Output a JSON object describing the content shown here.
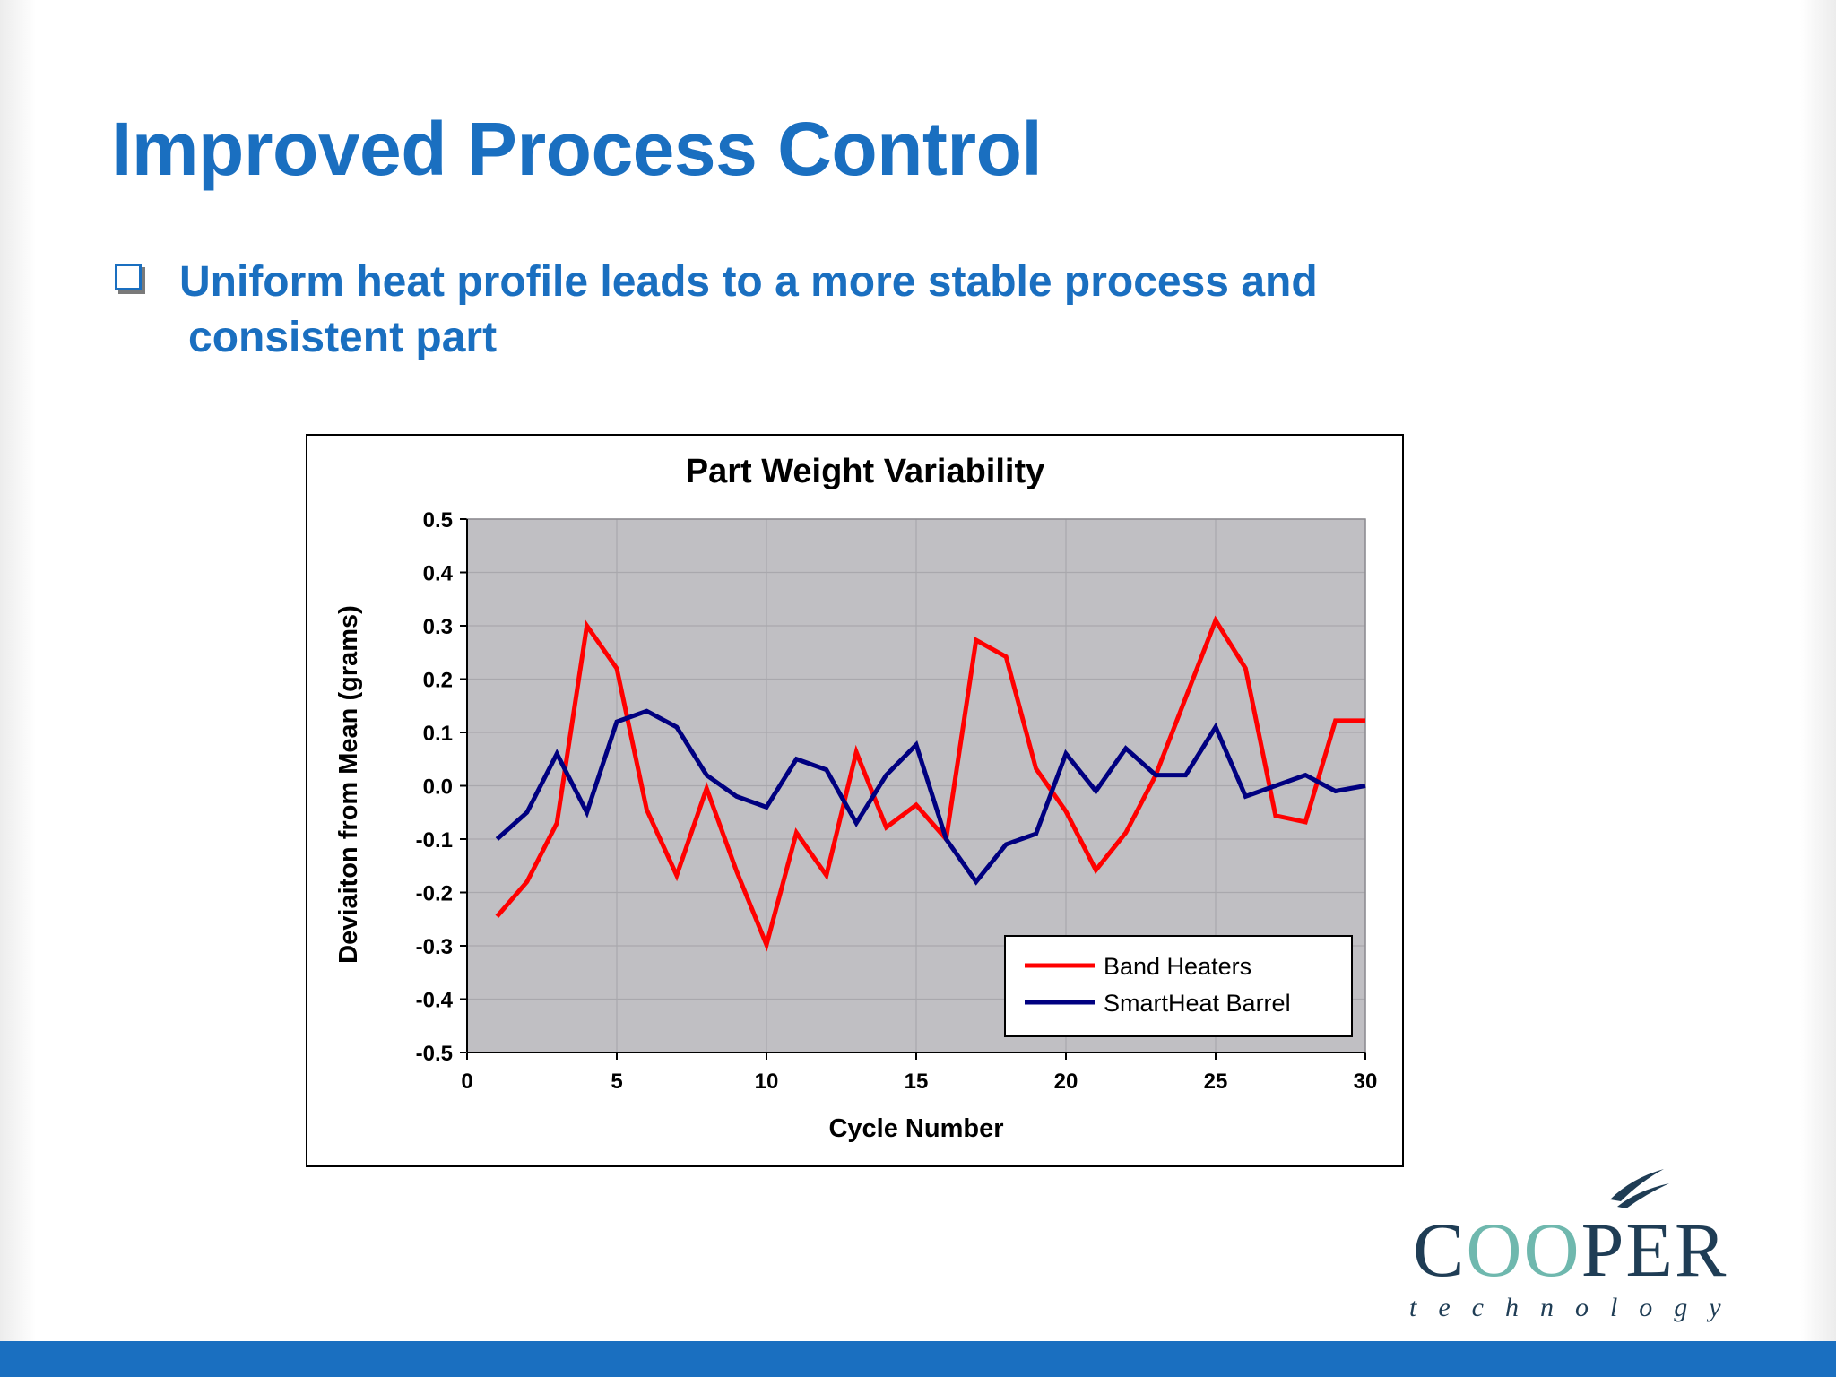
{
  "slide": {
    "title": "Improved Process Control",
    "bullet_line1": "Uniform heat profile leads to a more stable process and",
    "bullet_line2": "consistent part",
    "colors": {
      "title": "#1a6fc0",
      "footer_bar": "#1a6fc0"
    }
  },
  "logo": {
    "word_start": "C",
    "word_oo": "OO",
    "word_end": "PER",
    "subtitle": "technology",
    "colors": {
      "text": "#1f3d55",
      "accent": "#6fb8ae"
    }
  },
  "chart_data": {
    "type": "line",
    "title": "Part Weight Variability",
    "xlabel": "Cycle Number",
    "ylabel": "Deviaiton from Mean (grams)",
    "xlim": [
      0,
      30
    ],
    "ylim": [
      -0.5,
      0.5
    ],
    "x_ticks": [
      "0",
      "5",
      "10",
      "15",
      "20",
      "25",
      "30"
    ],
    "y_ticks": [
      "0.5",
      "0.4",
      "0.3",
      "0.2",
      "0.1",
      "0.0",
      "-0.1",
      "-0.2",
      "-0.3",
      "-0.4",
      "-0.5"
    ],
    "grid": true,
    "plot_background": "#c0bfc3",
    "legend_position": "bottom-right",
    "x": [
      1,
      2,
      3,
      4,
      5,
      6,
      7,
      8,
      9,
      10,
      11,
      12,
      13,
      14,
      15,
      16,
      17,
      18,
      19,
      20,
      21,
      22,
      23,
      24,
      25,
      26,
      27,
      28,
      29,
      30
    ],
    "series": [
      {
        "name": "Band Heaters",
        "color": "#ff0000",
        "values": [
          -0.245,
          -0.18,
          -0.07,
          0.3,
          0.22,
          -0.045,
          -0.168,
          -0.005,
          -0.16,
          -0.298,
          -0.088,
          -0.168,
          0.063,
          -0.078,
          -0.036,
          -0.1,
          0.273,
          0.242,
          0.032,
          -0.048,
          -0.158,
          -0.088,
          0.02,
          0.165,
          0.31,
          0.22,
          -0.056,
          -0.068,
          0.122,
          0.122
        ]
      },
      {
        "name": "SmartHeat Barrel",
        "color": "#000080",
        "values": [
          -0.1,
          -0.05,
          0.06,
          -0.05,
          0.12,
          0.14,
          0.11,
          0.02,
          -0.02,
          -0.04,
          0.05,
          0.03,
          -0.07,
          0.02,
          0.077,
          -0.1,
          -0.18,
          -0.11,
          -0.09,
          0.06,
          -0.01,
          0.07,
          0.02,
          0.02,
          0.11,
          -0.02,
          0.0,
          0.02,
          -0.01,
          0.0
        ]
      }
    ]
  }
}
